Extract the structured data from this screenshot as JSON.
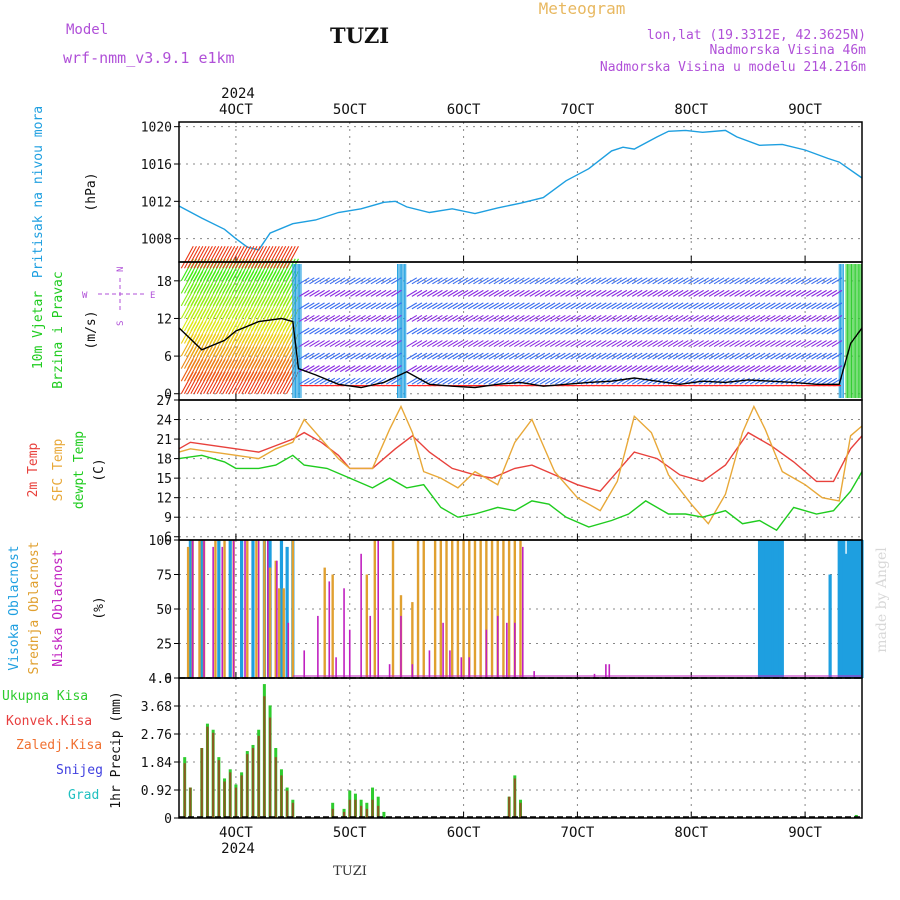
{
  "header": {
    "model_label": "Model",
    "model_name": "wrf-nmm_v3.9.1 e1km",
    "station": "TUZI",
    "title": "Meteogram",
    "coords": "lon,lat (19.3312E, 42.3625N)",
    "altitude": "Nadmorska Visina 46m",
    "model_altitude": "Nadmorska Visina u modelu 214.216m"
  },
  "footer": {
    "station": "TUZI",
    "watermark": "made by Angel"
  },
  "time_axis": {
    "year": "2024",
    "ticks": [
      "4OCT",
      "5OCT",
      "6OCT",
      "7OCT",
      "8OCT",
      "9OCT"
    ],
    "tick_days": [
      4,
      5,
      6,
      7,
      8,
      9
    ],
    "start_day": 3.5,
    "end_day": 9.5
  },
  "colors": {
    "pressure": "#1e9fe0",
    "wind_speed": "#000000",
    "temp2m": "#e8413c",
    "sfc_temp": "#e8a838",
    "dewpoint": "#1fcc1f",
    "high_cloud": "#1e9fe0",
    "mid_cloud": "#e0a030",
    "low_cloud": "#c020c0",
    "total_precip": "#2ecc2e",
    "conv_precip": "#e84040",
    "frozen_precip": "#f07030",
    "snow": "#4040e0",
    "hail": "#20c0c0",
    "barb_cool": "#8a2be2",
    "barb_warm": "#ff2020"
  },
  "chart_data": [
    {
      "type": "line",
      "panel": "pressure",
      "ylabel": [
        "Pritisak na nivou mora",
        "(hPa)"
      ],
      "yticks": [
        1008,
        1012,
        1016,
        1020
      ],
      "ylim": [
        1005.5,
        1020.5
      ],
      "x": [
        3.5,
        3.7,
        3.9,
        4.0,
        4.1,
        4.2,
        4.3,
        4.5,
        4.7,
        4.9,
        5.1,
        5.3,
        5.4,
        5.5,
        5.7,
        5.9,
        6.1,
        6.3,
        6.5,
        6.7,
        6.9,
        7.1,
        7.3,
        7.4,
        7.5,
        7.7,
        7.8,
        7.95,
        8.1,
        8.3,
        8.4,
        8.6,
        8.8,
        9.0,
        9.2,
        9.3,
        9.5
      ],
      "values": [
        1011.5,
        1010.2,
        1009.0,
        1008.0,
        1007.1,
        1006.8,
        1008.6,
        1009.6,
        1010.0,
        1010.8,
        1011.2,
        1011.9,
        1012.0,
        1011.4,
        1010.8,
        1011.2,
        1010.7,
        1011.3,
        1011.8,
        1012.4,
        1014.2,
        1015.5,
        1017.4,
        1017.8,
        1017.6,
        1018.9,
        1019.5,
        1019.6,
        1019.4,
        1019.6,
        1018.9,
        1018.0,
        1018.1,
        1017.5,
        1016.6,
        1016.2,
        1014.5
      ]
    },
    {
      "type": "line",
      "panel": "wind",
      "ylabel": [
        "10m Vjetar",
        "Brzina i Pravac",
        "(m/s)"
      ],
      "compass": [
        "N",
        "W",
        "E",
        "S"
      ],
      "yticks": [
        0,
        6,
        12,
        18
      ],
      "ylim": [
        -1,
        21
      ],
      "series": [
        {
          "id": "wind_speed",
          "x": [
            3.5,
            3.7,
            3.9,
            4.0,
            4.2,
            4.4,
            4.5,
            4.55,
            4.7,
            4.9,
            5.1,
            5.3,
            5.5,
            5.7,
            5.9,
            6.1,
            6.3,
            6.5,
            6.7,
            6.9,
            7.1,
            7.3,
            7.5,
            7.7,
            7.9,
            8.1,
            8.3,
            8.5,
            8.7,
            8.9,
            9.1,
            9.3,
            9.4,
            9.5
          ],
          "values": [
            10.5,
            7,
            8.5,
            10,
            11.5,
            12,
            11.5,
            4,
            3,
            1.5,
            1,
            1.8,
            3.5,
            1.5,
            1.2,
            1,
            1.5,
            1.8,
            1.2,
            1.5,
            1.8,
            2,
            2.5,
            2,
            1.5,
            2,
            1.8,
            2.2,
            2,
            1.8,
            1.5,
            1.5,
            8,
            10.5
          ]
        }
      ]
    },
    {
      "type": "line",
      "panel": "temperature",
      "ylabel": [
        "2m Temp",
        "SFC Temp",
        "dewpt Temp",
        "(C)"
      ],
      "yticks": [
        6,
        9,
        12,
        15,
        18,
        21,
        24,
        27
      ],
      "ylim": [
        5.5,
        27
      ],
      "series": [
        {
          "id": "temp2m",
          "x": [
            3.5,
            3.6,
            3.8,
            4.0,
            4.2,
            4.35,
            4.5,
            4.6,
            4.75,
            4.9,
            5.0,
            5.2,
            5.4,
            5.55,
            5.7,
            5.9,
            6.1,
            6.25,
            6.45,
            6.6,
            6.8,
            7.0,
            7.2,
            7.35,
            7.5,
            7.7,
            7.9,
            8.1,
            8.3,
            8.5,
            8.7,
            8.9,
            9.1,
            9.25,
            9.4,
            9.5
          ],
          "values": [
            19.5,
            20.5,
            20,
            19.5,
            19,
            20,
            21,
            22,
            20.5,
            18.5,
            16.5,
            16.5,
            19.5,
            21.5,
            19,
            16.5,
            15.5,
            15,
            16.5,
            17,
            15.5,
            14,
            13,
            16,
            19,
            18,
            15.5,
            14.5,
            17,
            22,
            20,
            17.5,
            14.5,
            14.5,
            19.5,
            21.5
          ]
        },
        {
          "id": "sfc_temp",
          "x": [
            3.5,
            3.6,
            3.8,
            4.0,
            4.2,
            4.35,
            4.5,
            4.6,
            4.75,
            4.9,
            5.0,
            5.2,
            5.35,
            5.45,
            5.55,
            5.65,
            5.8,
            5.95,
            6.1,
            6.3,
            6.45,
            6.6,
            6.8,
            7.0,
            7.2,
            7.35,
            7.5,
            7.65,
            7.8,
            8.0,
            8.15,
            8.3,
            8.45,
            8.55,
            8.65,
            8.8,
            9.0,
            9.15,
            9.3,
            9.4,
            9.5
          ],
          "values": [
            19,
            19.5,
            19,
            18.5,
            18,
            19.5,
            20.5,
            24,
            21,
            18,
            16.5,
            16.5,
            22.5,
            26,
            22,
            16,
            15,
            13.5,
            16,
            14,
            20.5,
            24,
            16,
            12,
            10,
            14.5,
            24.5,
            22,
            15.5,
            11,
            8,
            12.5,
            22,
            26,
            22.5,
            16,
            14,
            12,
            11.5,
            21.5,
            23
          ]
        },
        {
          "id": "dewpoint",
          "x": [
            3.5,
            3.7,
            3.9,
            4.0,
            4.2,
            4.35,
            4.5,
            4.6,
            4.8,
            5.0,
            5.2,
            5.35,
            5.5,
            5.65,
            5.8,
            5.95,
            6.1,
            6.3,
            6.45,
            6.6,
            6.75,
            6.9,
            7.1,
            7.3,
            7.45,
            7.6,
            7.8,
            7.95,
            8.1,
            8.3,
            8.45,
            8.6,
            8.75,
            8.9,
            9.1,
            9.25,
            9.4,
            9.5
          ],
          "values": [
            18,
            18.5,
            17.5,
            16.5,
            16.5,
            17,
            18.5,
            17,
            16.5,
            15,
            13.5,
            15,
            13.5,
            14,
            10.5,
            9,
            9.5,
            10.5,
            10,
            11.5,
            11,
            9,
            7.5,
            8.5,
            9.5,
            11.5,
            9.5,
            9.5,
            9,
            10,
            8,
            8.5,
            7,
            10.5,
            9.5,
            10,
            13,
            16
          ]
        }
      ]
    },
    {
      "type": "bar",
      "panel": "clouds",
      "ylabel": [
        "Visoka Oblacnost",
        "Srednja Oblacnost",
        "Niska Oblacnost",
        "(%)"
      ],
      "yticks": [
        0,
        25,
        50,
        75,
        100
      ],
      "ylim": [
        0,
        100
      ],
      "series": [
        {
          "id": "high_cloud",
          "x": [
            3.6,
            3.7,
            3.85,
            3.95,
            4.05,
            4.15,
            4.25,
            4.3,
            4.4,
            4.45,
            4.5,
            8.6,
            8.62,
            8.64,
            8.66,
            8.68,
            8.7,
            8.72,
            8.74,
            8.76,
            8.78,
            8.8,
            9.22,
            9.3,
            9.32,
            9.34,
            9.36,
            9.38,
            9.4,
            9.42,
            9.44,
            9.46,
            9.48,
            9.5
          ],
          "values": [
            100,
            100,
            100,
            100,
            100,
            100,
            100,
            100,
            100,
            95,
            100,
            100,
            100,
            100,
            100,
            100,
            100,
            100,
            100,
            100,
            100,
            100,
            75,
            100,
            100,
            100,
            90,
            100,
            100,
            100,
            100,
            100,
            100,
            100
          ]
        },
        {
          "id": "mid_cloud",
          "x": [
            3.58,
            3.62,
            3.68,
            3.72,
            3.82,
            3.9,
            3.98,
            4.1,
            4.18,
            4.25,
            4.3,
            4.35,
            4.38,
            4.42,
            4.5,
            4.78,
            4.85,
            5.15,
            5.22,
            5.38,
            5.45,
            5.55,
            5.6,
            5.65,
            5.75,
            5.8,
            5.85,
            5.9,
            5.95,
            6.0,
            6.05,
            6.1,
            6.15,
            6.2,
            6.25,
            6.3,
            6.35,
            6.4,
            6.45,
            6.5
          ],
          "values": [
            95,
            100,
            100,
            100,
            100,
            100,
            100,
            100,
            100,
            100,
            80,
            85,
            65,
            65,
            100,
            80,
            75,
            75,
            100,
            100,
            60,
            55,
            100,
            100,
            100,
            100,
            100,
            100,
            100,
            100,
            100,
            100,
            100,
            100,
            100,
            100,
            100,
            100,
            100,
            100
          ]
        },
        {
          "id": "low_cloud",
          "x": [
            3.62,
            3.72,
            3.8,
            3.88,
            3.98,
            4.08,
            4.2,
            4.28,
            4.36,
            4.46,
            4.6,
            4.72,
            4.82,
            4.88,
            4.95,
            5.0,
            5.1,
            5.18,
            5.25,
            5.35,
            5.45,
            5.55,
            5.7,
            5.82,
            5.88,
            5.98,
            6.05,
            6.2,
            6.3,
            6.38,
            6.45,
            6.52,
            6.62,
            7.15,
            7.25,
            7.28
          ],
          "values": [
            100,
            100,
            95,
            95,
            100,
            100,
            100,
            100,
            85,
            40,
            20,
            45,
            70,
            15,
            65,
            35,
            90,
            45,
            100,
            10,
            45,
            10,
            20,
            40,
            20,
            15,
            15,
            35,
            45,
            40,
            40,
            95,
            5,
            3,
            10,
            10
          ]
        }
      ]
    },
    {
      "type": "bar",
      "panel": "precipitation",
      "ylabel": [
        "Ukupna Kisa",
        "Konvek.Kisa",
        "Zaledj.Kisa",
        "Snijeg",
        "Grad",
        "1hr Precip (mm)"
      ],
      "yticks": [
        0,
        0.92,
        1.84,
        2.76,
        3.68,
        4.6
      ],
      "ylim": [
        0,
        4.6
      ],
      "series": [
        {
          "id": "total_precip",
          "x": [
            3.55,
            3.6,
            3.7,
            3.75,
            3.8,
            3.85,
            3.9,
            3.95,
            4.0,
            4.05,
            4.1,
            4.15,
            4.2,
            4.25,
            4.3,
            4.35,
            4.4,
            4.45,
            4.5,
            4.85,
            4.95,
            5.0,
            5.05,
            5.1,
            5.15,
            5.2,
            5.25,
            5.3,
            6.4,
            6.45,
            6.5,
            9.45
          ],
          "values": [
            2.0,
            1.0,
            2.3,
            3.1,
            2.9,
            2.0,
            1.3,
            1.6,
            1.1,
            1.5,
            2.2,
            2.4,
            2.9,
            4.4,
            3.7,
            2.3,
            1.6,
            1.0,
            0.6,
            0.5,
            0.3,
            0.9,
            0.8,
            0.6,
            0.5,
            1.0,
            0.7,
            0.2,
            0.7,
            1.4,
            0.6,
            0.1
          ]
        },
        {
          "id": "conv_precip",
          "x": [
            3.55,
            3.6,
            3.7,
            3.75,
            3.8,
            3.85,
            3.9,
            3.95,
            4.0,
            4.05,
            4.1,
            4.15,
            4.2,
            4.25,
            4.3,
            4.35,
            4.4,
            4.45,
            4.5,
            4.85,
            4.95,
            5.0,
            5.05,
            5.1,
            5.15,
            5.2,
            5.25,
            6.4,
            6.45,
            6.5
          ],
          "values": [
            1.8,
            1.0,
            2.3,
            3.0,
            2.8,
            1.9,
            1.2,
            1.5,
            1.0,
            1.4,
            2.1,
            2.3,
            2.7,
            4.0,
            3.3,
            2.0,
            1.4,
            0.9,
            0.5,
            0.3,
            0.2,
            0.6,
            0.6,
            0.4,
            0.3,
            0.6,
            0.4,
            0.7,
            1.3,
            0.5
          ]
        }
      ]
    }
  ]
}
